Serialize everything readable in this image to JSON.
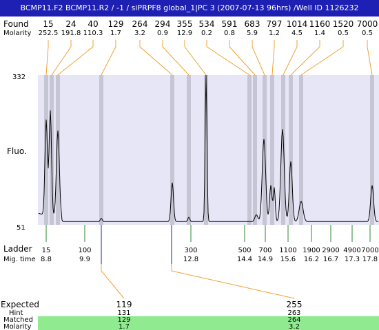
{
  "header": {
    "title": "BCMP11.F2  BCMP11.R2 / -1 / siPRPF8 global_1|PC 3 (2007-07-13 96hrs) /Well ID 1126232"
  },
  "labels": {
    "found": "Found",
    "molarity": "Molarity",
    "fluo": "Fluo.",
    "ladder": "Ladder",
    "mig_time": "Mig. time",
    "expected": "Expected",
    "hint": "Hint",
    "matched": "Matched",
    "molarity_bottom": "Molarity"
  },
  "colors": {
    "title_bg": "#1e20b3",
    "plot_bg": "#e6e6f7",
    "peak_band": "#c5c5d3",
    "connector": "#f0a030",
    "ladder_line": "#2a8a2a",
    "expected_value": "#e02020",
    "highlight_row": "#90ea90",
    "trace": "#000000"
  },
  "chart_data": {
    "type": "line",
    "y_axis": {
      "label": "Fluo.",
      "max": 332,
      "min": 51
    },
    "found_peaks": [
      {
        "size": "15",
        "molarity": "252.5"
      },
      {
        "size": "24",
        "molarity": "191.8"
      },
      {
        "size": "40",
        "molarity": "110.3"
      },
      {
        "size": "129",
        "molarity": "1.7"
      },
      {
        "size": "264",
        "molarity": "3.2"
      },
      {
        "size": "294",
        "molarity": "0.9"
      },
      {
        "size": "355",
        "molarity": "12.9"
      },
      {
        "size": "534",
        "molarity": "0.2"
      },
      {
        "size": "591",
        "molarity": "0.8"
      },
      {
        "size": "683",
        "molarity": "5.9"
      },
      {
        "size": "797",
        "molarity": "1.2"
      },
      {
        "size": "1014",
        "molarity": "4.5"
      },
      {
        "size": "1160",
        "molarity": "1.4"
      },
      {
        "size": "1520",
        "molarity": "0.5"
      },
      {
        "size": "7000",
        "molarity": "0.5"
      }
    ],
    "ladder": [
      {
        "size": "15",
        "mig_time": "8.8"
      },
      {
        "size": "100",
        "mig_time": "9.9"
      },
      {
        "size": "300",
        "mig_time": "12.8"
      },
      {
        "size": "500",
        "mig_time": "14.4"
      },
      {
        "size": "700",
        "mig_time": "14.9"
      },
      {
        "size": "1100",
        "mig_time": "15.6"
      },
      {
        "size": "1900",
        "mig_time": "16.2"
      },
      {
        "size": "2900",
        "mig_time": "16.7"
      },
      {
        "size": "4900",
        "mig_time": "17.3"
      },
      {
        "size": "7000",
        "mig_time": "17.8"
      }
    ],
    "expected": [
      {
        "expected": "119",
        "hint": "131",
        "matched": "129",
        "molarity": "1.7"
      },
      {
        "expected": "255",
        "hint": "263",
        "matched": "264",
        "molarity": "3.2"
      }
    ]
  }
}
